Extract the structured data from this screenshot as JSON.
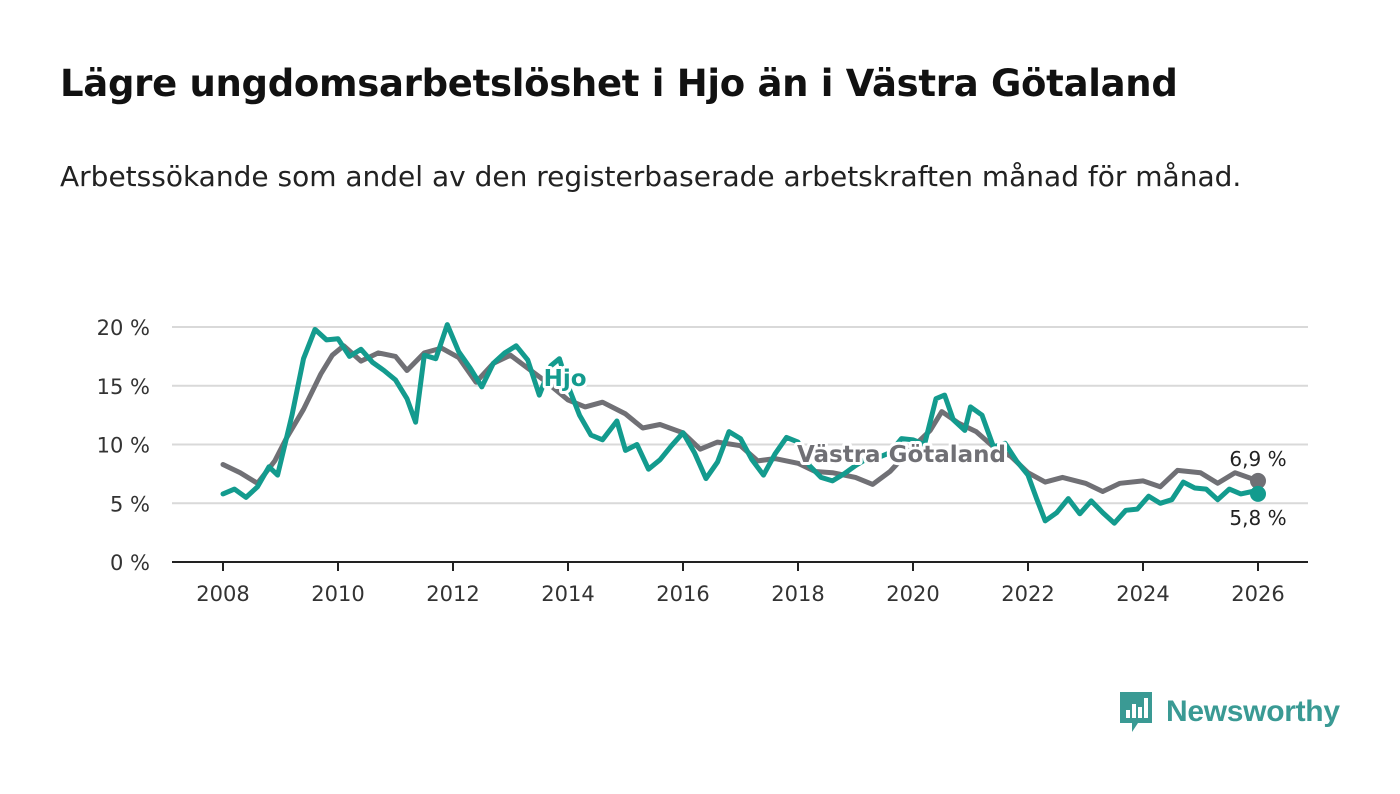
{
  "header": {
    "title": "Lägre ungdomsarbetslöshet i Hjo än i Västra Götaland",
    "subtitle": "Arbetssökande som andel av den registerbaserade arbetskraften månad för månad."
  },
  "brand": {
    "name": "Newsworthy",
    "icon": "newsworthy-logo-icon",
    "color": "#3a9a94"
  },
  "chart_data": {
    "type": "line",
    "title": "Lägre ungdomsarbetslöshet i Hjo än i Västra Götaland",
    "subtitle": "Arbetssökande som andel av den registerbaserade arbetskraften månad för månad.",
    "xlabel": "",
    "ylabel": "",
    "xlim": [
      2007.2,
      2026.8
    ],
    "ylim": [
      0,
      20
    ],
    "x_ticks": [
      2008,
      2010,
      2012,
      2014,
      2016,
      2018,
      2020,
      2022,
      2024,
      2026
    ],
    "x_tick_labels": [
      "2008",
      "2010",
      "2012",
      "2014",
      "2016",
      "2018",
      "2020",
      "2022",
      "2024",
      "2026"
    ],
    "y_ticks": [
      0,
      5,
      10,
      15,
      20
    ],
    "y_tick_labels": [
      "0 %",
      "5 %",
      "10 %",
      "15 %",
      "20 %"
    ],
    "grid": true,
    "legend": "inline",
    "series": [
      {
        "name": "Västra Götaland",
        "color": "#707075",
        "end_label": "6,9 %",
        "end_value": 6.9,
        "points": [
          [
            2008.0,
            8.3
          ],
          [
            2008.3,
            7.6
          ],
          [
            2008.6,
            6.7
          ],
          [
            2008.9,
            8.6
          ],
          [
            2009.1,
            10.5
          ],
          [
            2009.4,
            13.0
          ],
          [
            2009.7,
            16.0
          ],
          [
            2009.9,
            17.6
          ],
          [
            2010.1,
            18.4
          ],
          [
            2010.4,
            17.1
          ],
          [
            2010.7,
            17.8
          ],
          [
            2011.0,
            17.5
          ],
          [
            2011.2,
            16.3
          ],
          [
            2011.5,
            17.8
          ],
          [
            2011.8,
            18.2
          ],
          [
            2012.1,
            17.4
          ],
          [
            2012.4,
            15.3
          ],
          [
            2012.7,
            16.9
          ],
          [
            2013.0,
            17.6
          ],
          [
            2013.3,
            16.5
          ],
          [
            2013.6,
            15.4
          ],
          [
            2014.0,
            13.8
          ],
          [
            2014.3,
            13.2
          ],
          [
            2014.6,
            13.6
          ],
          [
            2015.0,
            12.6
          ],
          [
            2015.3,
            11.4
          ],
          [
            2015.6,
            11.7
          ],
          [
            2016.0,
            11.0
          ],
          [
            2016.3,
            9.6
          ],
          [
            2016.6,
            10.2
          ],
          [
            2017.0,
            9.9
          ],
          [
            2017.3,
            8.6
          ],
          [
            2017.6,
            8.8
          ],
          [
            2018.0,
            8.4
          ],
          [
            2018.3,
            7.7
          ],
          [
            2018.6,
            7.6
          ],
          [
            2019.0,
            7.2
          ],
          [
            2019.3,
            6.6
          ],
          [
            2019.6,
            7.7
          ],
          [
            2020.0,
            9.8
          ],
          [
            2020.3,
            11.2
          ],
          [
            2020.5,
            12.8
          ],
          [
            2020.8,
            11.8
          ],
          [
            2021.1,
            11.1
          ],
          [
            2021.4,
            9.8
          ],
          [
            2021.7,
            9.0
          ],
          [
            2022.0,
            7.6
          ],
          [
            2022.3,
            6.8
          ],
          [
            2022.6,
            7.2
          ],
          [
            2023.0,
            6.7
          ],
          [
            2023.3,
            6.0
          ],
          [
            2023.6,
            6.7
          ],
          [
            2024.0,
            6.9
          ],
          [
            2024.3,
            6.4
          ],
          [
            2024.6,
            7.8
          ],
          [
            2025.0,
            7.6
          ],
          [
            2025.3,
            6.7
          ],
          [
            2025.6,
            7.6
          ],
          [
            2026.0,
            6.9
          ]
        ]
      },
      {
        "name": "Hjo",
        "color": "#139b8e",
        "end_label": "5,8 %",
        "end_value": 5.8,
        "points": [
          [
            2008.0,
            5.8
          ],
          [
            2008.2,
            6.2
          ],
          [
            2008.4,
            5.5
          ],
          [
            2008.6,
            6.4
          ],
          [
            2008.8,
            8.1
          ],
          [
            2008.95,
            7.4
          ],
          [
            2009.2,
            12.5
          ],
          [
            2009.4,
            17.3
          ],
          [
            2009.6,
            19.8
          ],
          [
            2009.8,
            18.9
          ],
          [
            2010.0,
            19.0
          ],
          [
            2010.2,
            17.5
          ],
          [
            2010.4,
            18.1
          ],
          [
            2010.6,
            17.0
          ],
          [
            2010.8,
            16.3
          ],
          [
            2011.0,
            15.5
          ],
          [
            2011.2,
            13.9
          ],
          [
            2011.35,
            11.9
          ],
          [
            2011.5,
            17.6
          ],
          [
            2011.7,
            17.3
          ],
          [
            2011.9,
            20.2
          ],
          [
            2012.1,
            17.9
          ],
          [
            2012.3,
            16.5
          ],
          [
            2012.5,
            14.9
          ],
          [
            2012.7,
            16.9
          ],
          [
            2012.9,
            17.8
          ],
          [
            2013.1,
            18.4
          ],
          [
            2013.3,
            17.2
          ],
          [
            2013.5,
            14.2
          ],
          [
            2013.7,
            16.7
          ],
          [
            2013.85,
            17.3
          ],
          [
            2014.0,
            15.0
          ],
          [
            2014.2,
            12.5
          ],
          [
            2014.4,
            10.8
          ],
          [
            2014.6,
            10.4
          ],
          [
            2014.85,
            12.0
          ],
          [
            2015.0,
            9.5
          ],
          [
            2015.2,
            10.0
          ],
          [
            2015.4,
            7.9
          ],
          [
            2015.6,
            8.7
          ],
          [
            2015.8,
            9.9
          ],
          [
            2016.0,
            11.0
          ],
          [
            2016.2,
            9.3
          ],
          [
            2016.4,
            7.1
          ],
          [
            2016.6,
            8.5
          ],
          [
            2016.8,
            11.1
          ],
          [
            2017.0,
            10.5
          ],
          [
            2017.2,
            8.7
          ],
          [
            2017.4,
            7.4
          ],
          [
            2017.6,
            9.2
          ],
          [
            2017.8,
            10.6
          ],
          [
            2018.0,
            10.2
          ],
          [
            2018.2,
            8.2
          ],
          [
            2018.4,
            7.2
          ],
          [
            2018.6,
            6.9
          ],
          [
            2018.8,
            7.5
          ],
          [
            2019.0,
            8.2
          ],
          [
            2019.2,
            8.8
          ],
          [
            2019.4,
            8.9
          ],
          [
            2019.6,
            9.3
          ],
          [
            2019.8,
            10.5
          ],
          [
            2020.0,
            10.4
          ],
          [
            2020.2,
            10.0
          ],
          [
            2020.4,
            13.9
          ],
          [
            2020.55,
            14.2
          ],
          [
            2020.7,
            12.1
          ],
          [
            2020.9,
            11.2
          ],
          [
            2021.0,
            13.2
          ],
          [
            2021.2,
            12.5
          ],
          [
            2021.4,
            9.8
          ],
          [
            2021.6,
            10.1
          ],
          [
            2021.8,
            8.6
          ],
          [
            2022.0,
            7.4
          ],
          [
            2022.15,
            5.4
          ],
          [
            2022.3,
            3.5
          ],
          [
            2022.5,
            4.2
          ],
          [
            2022.7,
            5.4
          ],
          [
            2022.9,
            4.1
          ],
          [
            2023.1,
            5.2
          ],
          [
            2023.3,
            4.2
          ],
          [
            2023.5,
            3.3
          ],
          [
            2023.7,
            4.4
          ],
          [
            2023.9,
            4.5
          ],
          [
            2024.1,
            5.6
          ],
          [
            2024.3,
            5.0
          ],
          [
            2024.5,
            5.3
          ],
          [
            2024.7,
            6.8
          ],
          [
            2024.9,
            6.3
          ],
          [
            2025.1,
            6.2
          ],
          [
            2025.3,
            5.3
          ],
          [
            2025.5,
            6.2
          ],
          [
            2025.7,
            5.8
          ],
          [
            2025.9,
            6.0
          ],
          [
            2026.0,
            5.8
          ]
        ]
      }
    ],
    "annotations": [
      {
        "text": "Hjo",
        "series": "Hjo",
        "x": 2013.95,
        "y": 15.0
      },
      {
        "text": "Västra Götaland",
        "series": "Västra Götaland",
        "x": 2019.8,
        "y": 8.5
      }
    ]
  }
}
